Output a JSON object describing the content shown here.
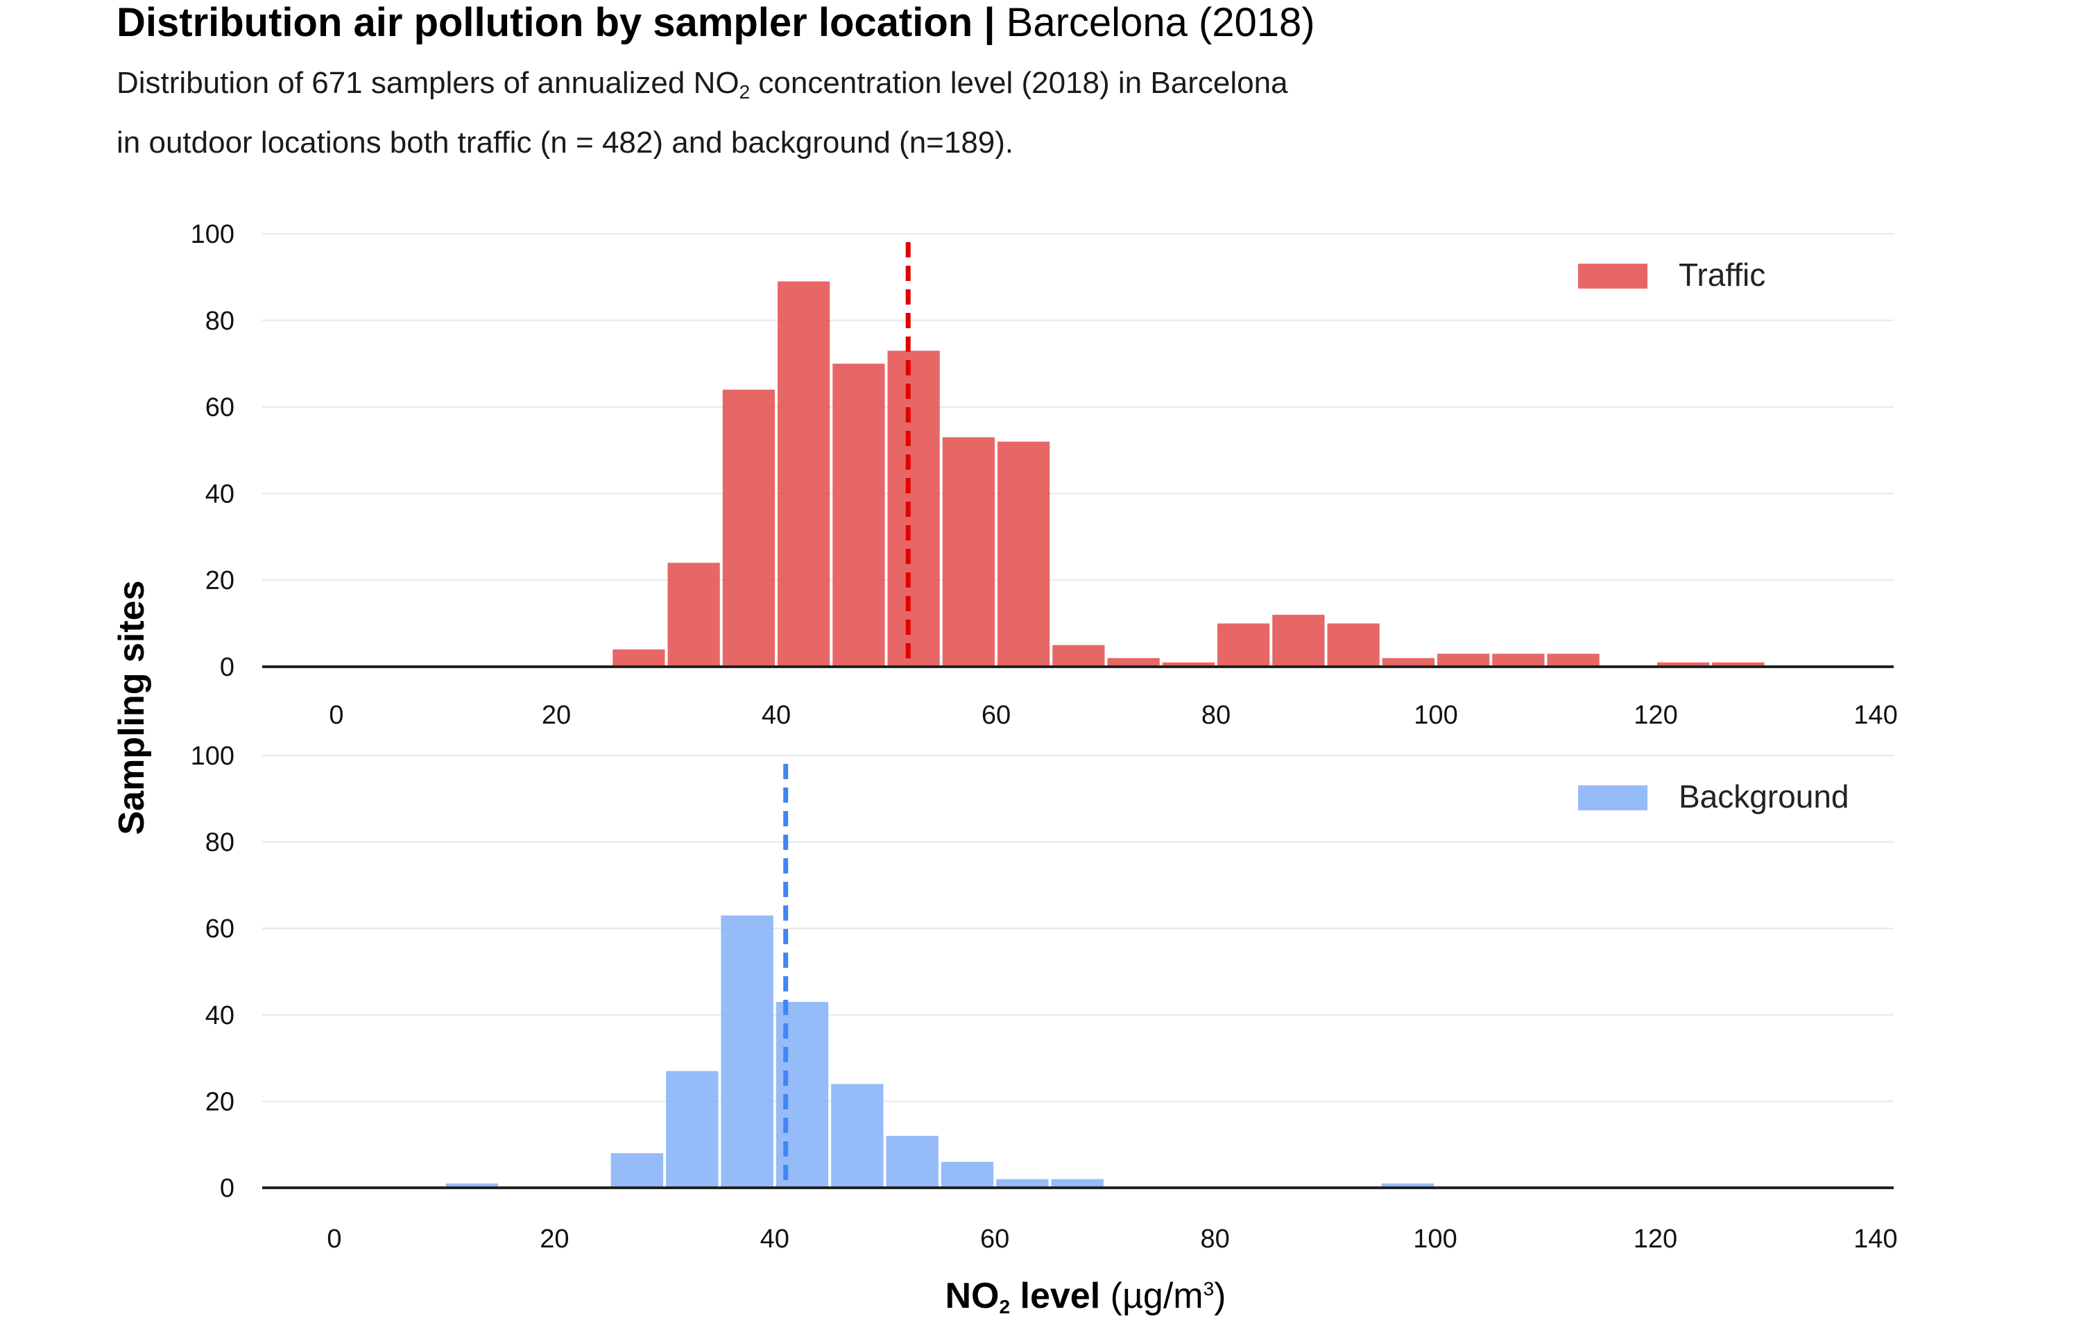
{
  "header": {
    "title_bold": "Distribution air pollution by sampler location |",
    "title_light": " Barcelona (2018)",
    "subtitle_line1_a": "Distribution of 671 samplers of annualized NO",
    "subtitle_line1_sub": "2",
    "subtitle_line1_b": " concentration level (2018) in Barcelona",
    "subtitle_line2": "in outdoor locations both traffic (n = 482) and background (n=189)."
  },
  "axes": {
    "ylabel": "Sampling sites",
    "xlabel_bold_a": "NO",
    "xlabel_sub": "2",
    "xlabel_bold_b": " level",
    "xlabel_unit_a": " (µg/m",
    "xlabel_sup": "3",
    "xlabel_unit_b": ")"
  },
  "colors": {
    "traffic_bar": "#e45756",
    "traffic_mean": "#e00000",
    "background_bar": "#8ab4f8",
    "background_mean": "#4285f4",
    "grid": "#e8e8e8",
    "axis": "#222222"
  },
  "chart_data": [
    {
      "type": "bar",
      "series_name": "Traffic",
      "legend_position": "top-right",
      "bin_width": 5,
      "bins_start": [
        25,
        30,
        35,
        40,
        45,
        50,
        55,
        60,
        65,
        70,
        75,
        80,
        85,
        90,
        95,
        100,
        105,
        110,
        120,
        125
      ],
      "values": [
        4,
        24,
        64,
        89,
        70,
        73,
        53,
        52,
        5,
        2,
        1,
        10,
        12,
        10,
        2,
        3,
        3,
        3,
        1,
        1
      ],
      "mean_line": 52,
      "xlim": [
        0,
        140
      ],
      "ylim": [
        0,
        100
      ],
      "xticks": [
        0,
        20,
        40,
        60,
        80,
        100,
        120,
        140
      ],
      "yticks": [
        0,
        20,
        40,
        60,
        80,
        100
      ],
      "grid": true
    },
    {
      "type": "bar",
      "series_name": "Background",
      "legend_position": "top-right",
      "bin_width": 5,
      "bins_start": [
        10,
        25,
        30,
        35,
        40,
        45,
        50,
        55,
        60,
        65,
        95
      ],
      "values": [
        1,
        8,
        27,
        63,
        43,
        24,
        12,
        6,
        2,
        2,
        1
      ],
      "mean_line": 41,
      "xlim": [
        0,
        140
      ],
      "ylim": [
        0,
        100
      ],
      "xticks": [
        0,
        20,
        40,
        60,
        80,
        100,
        120,
        140
      ],
      "yticks": [
        0,
        20,
        40,
        60,
        80,
        100
      ],
      "grid": true
    }
  ]
}
